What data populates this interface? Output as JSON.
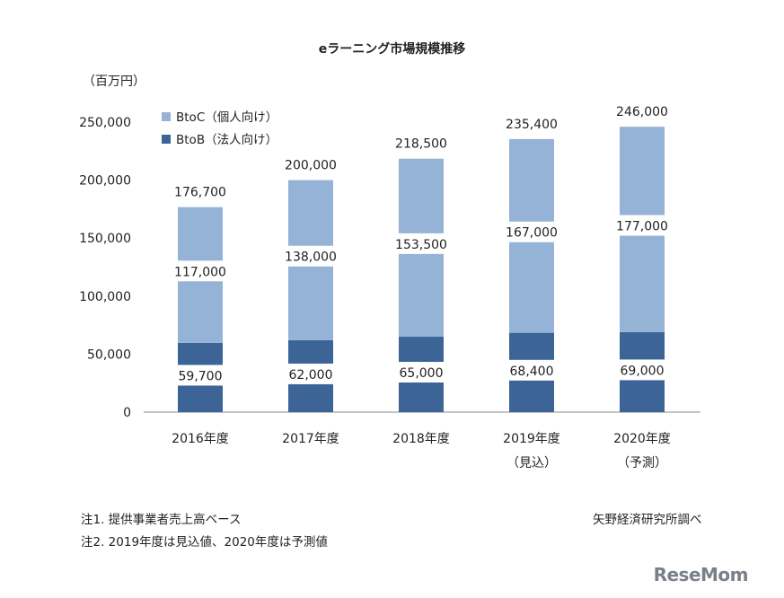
{
  "chart_data": {
    "type": "bar",
    "stacked": true,
    "title": "eラーニング市場規模推移",
    "ylabel": "（百万円）",
    "ylim": [
      0,
      250000
    ],
    "yticks": [
      "0",
      "50,000",
      "100,000",
      "150,000",
      "200,000",
      "250,000"
    ],
    "categories": [
      "2016年度",
      "2017年度",
      "2018年度",
      "2019年度",
      "2020年度"
    ],
    "category_sublabels": [
      "",
      "",
      "",
      "（見込）",
      "（予測）"
    ],
    "series": [
      {
        "name": "BtoB（法人向け）",
        "color": "#3c6496",
        "values": [
          59700,
          62000,
          65000,
          68400,
          69000
        ]
      },
      {
        "name": "BtoC（個人向け）",
        "color": "#95b3d7",
        "values": [
          117000,
          138000,
          153500,
          167000,
          177000
        ]
      }
    ],
    "totals": [
      176700,
      200000,
      218500,
      235400,
      246000
    ],
    "data_labels": {
      "btob": [
        "59,700",
        "62,000",
        "65,000",
        "68,400",
        "69,000"
      ],
      "btoc": [
        "117,000",
        "138,000",
        "153,500",
        "167,000",
        "177,000"
      ],
      "total": [
        "176,700",
        "200,000",
        "218,500",
        "235,400",
        "246,000"
      ]
    },
    "legend": "top-left",
    "grid": false
  },
  "notes": {
    "note1": "注1. 提供事業者売上高ベース",
    "note2": "注2. 2019年度は見込値、2020年度は予測値",
    "source": "矢野経済研究所調べ"
  },
  "watermark": "ReseMom"
}
